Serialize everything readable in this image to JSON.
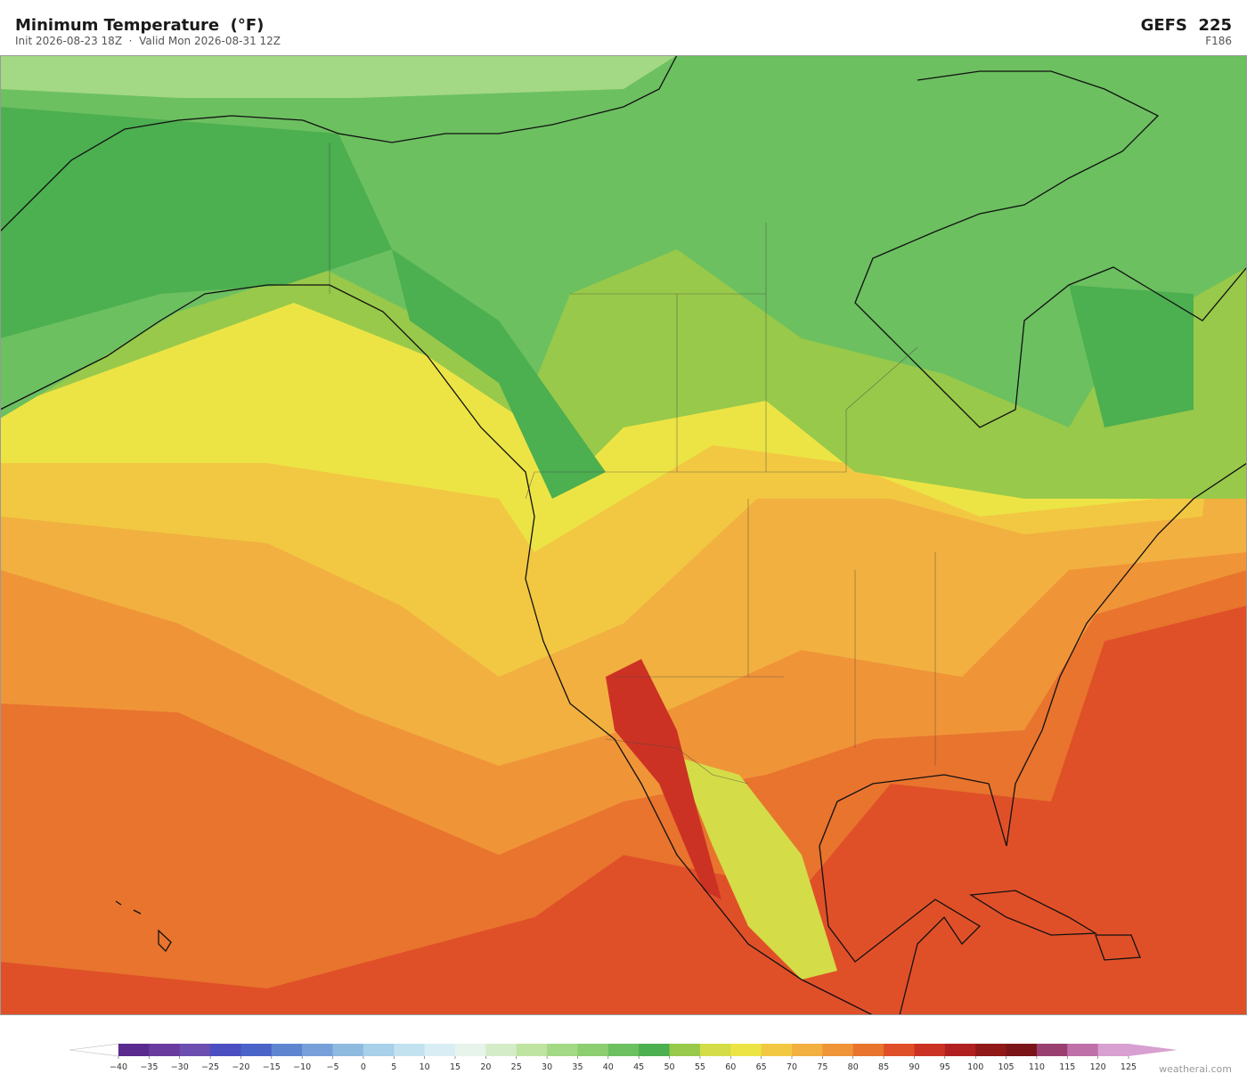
{
  "header": {
    "title": "Minimum Temperature  (°F)",
    "subtitle": "Init 2026-08-23 18Z  ·  Valid Mon 2026-08-31 12Z",
    "model": "GEFS  225",
    "forecast_hour": "F186"
  },
  "colorbar": {
    "ticks": [
      {
        "value": -40,
        "label": "−40"
      },
      {
        "value": -35,
        "label": "−35"
      },
      {
        "value": -30,
        "label": "−30"
      },
      {
        "value": -25,
        "label": "−25"
      },
      {
        "value": -20,
        "label": "−20"
      },
      {
        "value": -15,
        "label": "−15"
      },
      {
        "value": -10,
        "label": "−10"
      },
      {
        "value": -5,
        "label": "−5"
      },
      0,
      5,
      10,
      15,
      20,
      25,
      30,
      35,
      40,
      45,
      50,
      55,
      60,
      65,
      70,
      75,
      80,
      85,
      90,
      95,
      100,
      105,
      110,
      115,
      120,
      125
    ],
    "colors": [
      "#5b2a8e",
      "#6a3b9e",
      "#6c4db0",
      "#4b4fc2",
      "#4a64c8",
      "#5e86d0",
      "#77a0da",
      "#8fbae0",
      "#a8d0e8",
      "#c2e2f0",
      "#d8eef4",
      "#e6f4ec",
      "#d4ecc8",
      "#bfe3a0",
      "#a3d885",
      "#8cce70",
      "#6cc060",
      "#4caf50",
      "#98c94a",
      "#d4dc48",
      "#ece445",
      "#f2c842",
      "#f2b040",
      "#f09438",
      "#e8742e",
      "#e05028",
      "#cc3224",
      "#b02020",
      "#901818",
      "#7a1418",
      "#9a4070",
      "#c070a8",
      "#d8a0d0"
    ],
    "under_color": "#ffffff",
    "over_color": "#d8a0d0"
  },
  "credit": "weatherai.com"
}
